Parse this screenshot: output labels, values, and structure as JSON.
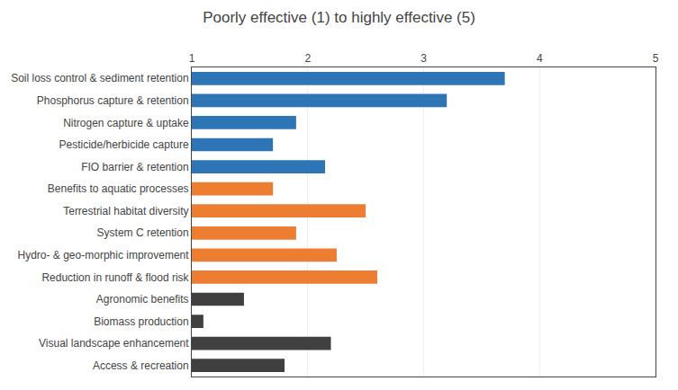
{
  "chart_data": {
    "type": "bar",
    "orientation": "horizontal",
    "title": "Poorly effective (1) to highly effective (5)",
    "categories": [
      "Soil loss control & sediment retention",
      "Phosphorus capture & retention",
      "Nitrogen capture & uptake",
      "Pesticide/herbicide capture",
      "FIO barrier & retention",
      "Benefits to aquatic processes",
      "Terrestrial habitat diversity",
      "System C retention",
      "Hydro- & geo-morphic improvement",
      "Reduction in runoff & flood risk",
      "Agronomic benefits",
      "Biomass production",
      "Visual landscape enhancement",
      "Access & recreation"
    ],
    "values": [
      3.7,
      3.2,
      1.9,
      1.7,
      2.15,
      1.7,
      2.5,
      1.9,
      2.25,
      2.6,
      1.45,
      1.1,
      2.2,
      1.8
    ],
    "colors": [
      "#2e75b6",
      "#2e75b6",
      "#2e75b6",
      "#2e75b6",
      "#2e75b6",
      "#ed7d31",
      "#ed7d31",
      "#ed7d31",
      "#ed7d31",
      "#ed7d31",
      "#404040",
      "#404040",
      "#404040",
      "#404040"
    ],
    "xlim": [
      1,
      5
    ],
    "xticks": [
      1,
      2,
      3,
      4,
      5
    ],
    "grid": true
  }
}
